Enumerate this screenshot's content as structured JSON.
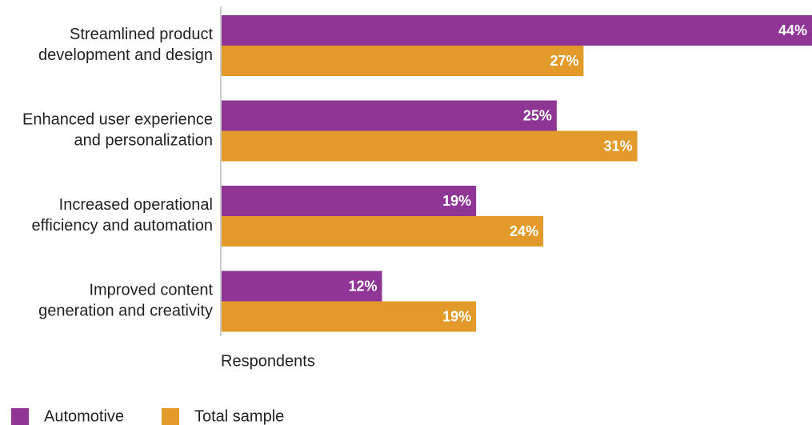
{
  "chart_data": {
    "type": "bar",
    "orientation": "horizontal",
    "categories": [
      [
        "Streamlined product",
        "development and design"
      ],
      [
        "Enhanced user experience",
        "and personalization"
      ],
      [
        "Increased operational",
        "efficiency and automation"
      ],
      [
        "Improved content",
        "generation and creativity"
      ]
    ],
    "series": [
      {
        "name": "Automotive",
        "color": "#8E3596",
        "values": [
          44,
          25,
          19,
          12
        ]
      },
      {
        "name": "Total sample",
        "color": "#E29B2A",
        "values": [
          27,
          31,
          24,
          19
        ]
      }
    ],
    "value_suffix": "%",
    "xlabel": "Respondents",
    "xlim": [
      0,
      44
    ],
    "grid": false,
    "legend_placement": "bottom-left"
  }
}
